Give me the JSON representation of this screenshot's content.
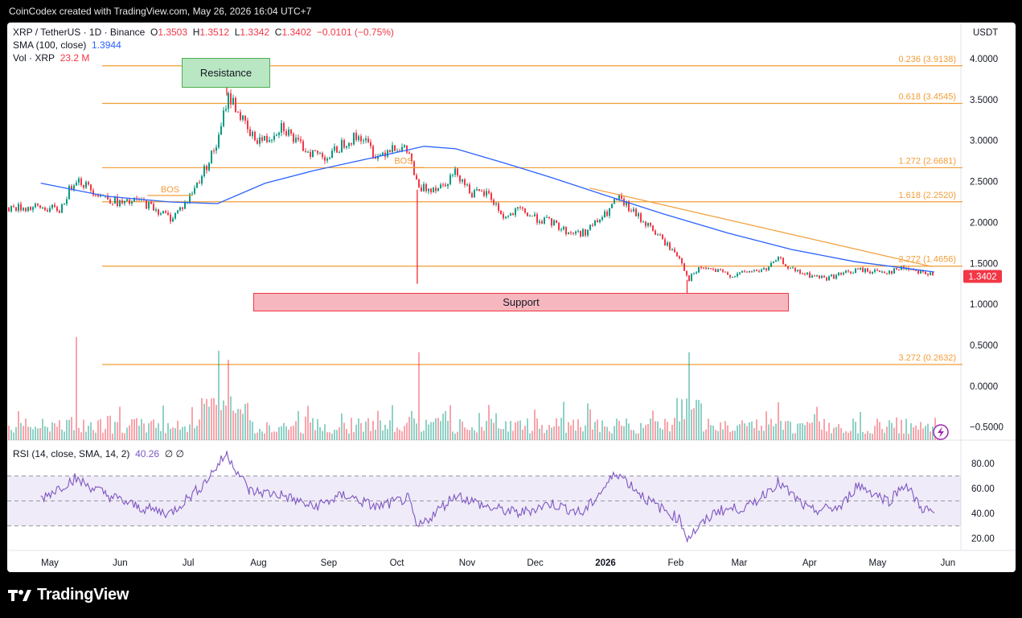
{
  "header": {
    "credit": "CoinCodex created with TradingView.com, May 26, 2026 16:04 UTC+7"
  },
  "legend": {
    "symbol": "XRP / TetherUS · 1D · Binance",
    "o_label": "O",
    "o": "1.3503",
    "h_label": "H",
    "h": "1.3512",
    "l_label": "L",
    "l": "1.3342",
    "c_label": "C",
    "c": "1.3402",
    "change": "−0.0101 (−0.75%)",
    "sma_label": "SMA (100, close)",
    "sma_value": "1.3944",
    "vol_label": "Vol · XRP",
    "vol_value": "23.2 M",
    "rsi_label": "RSI (14, close, SMA, 14, 2)",
    "rsi_value": "40.26",
    "rsi_extra": "∅ ∅"
  },
  "colors": {
    "up": "#089981",
    "down": "#f23645",
    "sma": "#2962ff",
    "fib": "#f29d38",
    "rsi": "#7e57c2",
    "support": "#f23645",
    "resistance": "#4caf50"
  },
  "annotations": {
    "resistance": "Resistance",
    "support": "Support",
    "bos1": "BOS",
    "bos2": "BOS"
  },
  "price_axis": {
    "currency": "USDT",
    "ticks": [
      "4.0000",
      "3.5000",
      "3.0000",
      "2.5000",
      "2.0000",
      "1.5000",
      "1.0000",
      "0.5000",
      "0.0000",
      "−0.5000"
    ],
    "current_price_label": "1.3402"
  },
  "rsi_axis": {
    "ticks": [
      "80.00",
      "60.00",
      "40.00",
      "20.00"
    ]
  },
  "time_axis": {
    "labels": [
      "May",
      "Jun",
      "Jul",
      "Aug",
      "Sep",
      "Oct",
      "Nov",
      "Dec",
      "2026",
      "Feb",
      "Mar",
      "Apr",
      "May",
      "Jun"
    ]
  },
  "footer": {
    "brand": "TradingView"
  },
  "chart_data": {
    "type": "candlestick",
    "symbol": "XRP / TetherUS",
    "interval": "1D",
    "ylim": [
      -0.6,
      4.15
    ],
    "fib_levels": [
      {
        "label": "0.236 (3.9138)",
        "value": 3.9138
      },
      {
        "label": "0.618 (3.4545)",
        "value": 3.4545
      },
      {
        "label": "1.272 (2.6681)",
        "value": 2.6681
      },
      {
        "label": "1.618 (2.2520)",
        "value": 2.252
      },
      {
        "label": "2.272 (1.4656)",
        "value": 1.4656
      },
      {
        "label": "3.272 (0.2632)",
        "value": 0.2632
      }
    ],
    "support_zone": [
      0.92,
      1.13
    ],
    "resistance_zone": [
      3.7,
      4.08
    ],
    "trendline": [
      {
        "date": "2025-12-25",
        "price": 2.42
      },
      {
        "date": "2026-05-25",
        "price": 1.46
      }
    ],
    "close_path": [
      {
        "date": "2025-04-27",
        "price": 2.18
      },
      {
        "date": "2025-05-05",
        "price": 2.15
      },
      {
        "date": "2025-05-12",
        "price": 2.55
      },
      {
        "date": "2025-05-19",
        "price": 2.4
      },
      {
        "date": "2025-05-26",
        "price": 2.3
      },
      {
        "date": "2025-06-02",
        "price": 2.22
      },
      {
        "date": "2025-06-09",
        "price": 2.27
      },
      {
        "date": "2025-06-16",
        "price": 2.17
      },
      {
        "date": "2025-06-23",
        "price": 2.05
      },
      {
        "date": "2025-06-30",
        "price": 2.25
      },
      {
        "date": "2025-07-07",
        "price": 2.6
      },
      {
        "date": "2025-07-14",
        "price": 3.0
      },
      {
        "date": "2025-07-18",
        "price": 3.55
      },
      {
        "date": "2025-07-21",
        "price": 3.45
      },
      {
        "date": "2025-07-28",
        "price": 3.05
      },
      {
        "date": "2025-08-04",
        "price": 3.0
      },
      {
        "date": "2025-08-11",
        "price": 3.2
      },
      {
        "date": "2025-08-18",
        "price": 2.95
      },
      {
        "date": "2025-08-25",
        "price": 2.85
      },
      {
        "date": "2025-09-01",
        "price": 2.8
      },
      {
        "date": "2025-09-08",
        "price": 3.0
      },
      {
        "date": "2025-09-15",
        "price": 3.05
      },
      {
        "date": "2025-09-22",
        "price": 2.8
      },
      {
        "date": "2025-09-29",
        "price": 2.95
      },
      {
        "date": "2025-10-06",
        "price": 2.85
      },
      {
        "date": "2025-10-10",
        "price": 2.4
      },
      {
        "date": "2025-10-20",
        "price": 2.45
      },
      {
        "date": "2025-10-27",
        "price": 2.62
      },
      {
        "date": "2025-11-03",
        "price": 2.35
      },
      {
        "date": "2025-11-10",
        "price": 2.35
      },
      {
        "date": "2025-11-17",
        "price": 2.05
      },
      {
        "date": "2025-11-24",
        "price": 2.15
      },
      {
        "date": "2025-12-01",
        "price": 2.05
      },
      {
        "date": "2025-12-08",
        "price": 2.0
      },
      {
        "date": "2025-12-15",
        "price": 1.88
      },
      {
        "date": "2025-12-22",
        "price": 1.87
      },
      {
        "date": "2026-01-01",
        "price": 2.1
      },
      {
        "date": "2026-01-06",
        "price": 2.3
      },
      {
        "date": "2026-01-13",
        "price": 2.12
      },
      {
        "date": "2026-01-20",
        "price": 1.95
      },
      {
        "date": "2026-01-27",
        "price": 1.75
      },
      {
        "date": "2026-02-03",
        "price": 1.55
      },
      {
        "date": "2026-02-06",
        "price": 1.3
      },
      {
        "date": "2026-02-12",
        "price": 1.45
      },
      {
        "date": "2026-02-19",
        "price": 1.4
      },
      {
        "date": "2026-02-26",
        "price": 1.35
      },
      {
        "date": "2026-03-05",
        "price": 1.4
      },
      {
        "date": "2026-03-12",
        "price": 1.42
      },
      {
        "date": "2026-03-18",
        "price": 1.55
      },
      {
        "date": "2026-03-25",
        "price": 1.4
      },
      {
        "date": "2026-04-01",
        "price": 1.35
      },
      {
        "date": "2026-04-08",
        "price": 1.32
      },
      {
        "date": "2026-04-15",
        "price": 1.37
      },
      {
        "date": "2026-04-22",
        "price": 1.42
      },
      {
        "date": "2026-04-29",
        "price": 1.4
      },
      {
        "date": "2026-05-06",
        "price": 1.4
      },
      {
        "date": "2026-05-13",
        "price": 1.45
      },
      {
        "date": "2026-05-20",
        "price": 1.4
      },
      {
        "date": "2026-05-26",
        "price": 1.3402
      }
    ],
    "sma_path": [
      {
        "date": "2025-04-27",
        "price": 2.48
      },
      {
        "date": "2025-05-26",
        "price": 2.32
      },
      {
        "date": "2025-06-23",
        "price": 2.25
      },
      {
        "date": "2025-07-14",
        "price": 2.23
      },
      {
        "date": "2025-08-04",
        "price": 2.48
      },
      {
        "date": "2025-08-25",
        "price": 2.63
      },
      {
        "date": "2025-09-22",
        "price": 2.8
      },
      {
        "date": "2025-10-13",
        "price": 2.93
      },
      {
        "date": "2025-10-27",
        "price": 2.9
      },
      {
        "date": "2025-11-17",
        "price": 2.73
      },
      {
        "date": "2025-12-08",
        "price": 2.55
      },
      {
        "date": "2026-01-01",
        "price": 2.33
      },
      {
        "date": "2026-01-27",
        "price": 2.1
      },
      {
        "date": "2026-02-24",
        "price": 1.87
      },
      {
        "date": "2026-03-24",
        "price": 1.67
      },
      {
        "date": "2026-04-21",
        "price": 1.52
      },
      {
        "date": "2026-05-26",
        "price": 1.3944
      }
    ],
    "wicks": [
      {
        "date": "2025-07-18",
        "high": 3.66
      },
      {
        "date": "2025-10-10",
        "low": 1.25
      },
      {
        "date": "2026-02-06",
        "low": 1.12
      }
    ],
    "volume_spikes": [
      {
        "date": "2025-05-12"
      },
      {
        "date": "2025-07-14"
      },
      {
        "date": "2025-07-18"
      },
      {
        "date": "2025-10-10"
      },
      {
        "date": "2026-02-06"
      }
    ],
    "rsi_path": [
      {
        "date": "2025-04-27",
        "value": 52
      },
      {
        "date": "2025-05-12",
        "value": 68
      },
      {
        "date": "2025-05-26",
        "value": 55
      },
      {
        "date": "2025-06-09",
        "value": 45
      },
      {
        "date": "2025-06-23",
        "value": 40
      },
      {
        "date": "2025-07-07",
        "value": 62
      },
      {
        "date": "2025-07-18",
        "value": 88
      },
      {
        "date": "2025-07-28",
        "value": 58
      },
      {
        "date": "2025-08-11",
        "value": 55
      },
      {
        "date": "2025-08-25",
        "value": 45
      },
      {
        "date": "2025-09-08",
        "value": 55
      },
      {
        "date": "2025-09-22",
        "value": 45
      },
      {
        "date": "2025-10-06",
        "value": 52
      },
      {
        "date": "2025-10-10",
        "value": 28
      },
      {
        "date": "2025-10-27",
        "value": 55
      },
      {
        "date": "2025-11-10",
        "value": 45
      },
      {
        "date": "2025-11-24",
        "value": 40
      },
      {
        "date": "2025-12-08",
        "value": 48
      },
      {
        "date": "2025-12-22",
        "value": 40
      },
      {
        "date": "2026-01-06",
        "value": 73
      },
      {
        "date": "2026-01-20",
        "value": 50
      },
      {
        "date": "2026-02-03",
        "value": 35
      },
      {
        "date": "2026-02-06",
        "value": 20
      },
      {
        "date": "2026-02-19",
        "value": 42
      },
      {
        "date": "2026-03-05",
        "value": 45
      },
      {
        "date": "2026-03-18",
        "value": 65
      },
      {
        "date": "2026-04-01",
        "value": 42
      },
      {
        "date": "2026-04-15",
        "value": 45
      },
      {
        "date": "2026-04-22",
        "value": 63
      },
      {
        "date": "2026-05-06",
        "value": 50
      },
      {
        "date": "2026-05-13",
        "value": 64
      },
      {
        "date": "2026-05-20",
        "value": 45
      },
      {
        "date": "2026-05-26",
        "value": 40.26
      }
    ],
    "rsi_band": [
      30,
      70
    ]
  }
}
